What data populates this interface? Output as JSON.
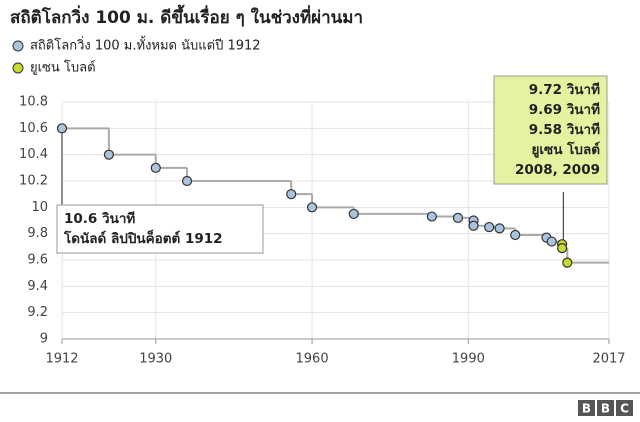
{
  "chart_data": {
    "type": "step-scatter",
    "title": "สถิติโลกวิ่ง 100 ม. ดีขึ้นเรื่อย ๆ ในช่วงที่ผ่านมา",
    "series": [
      {
        "name": "สถิติโลกวิ่ง 100 ม.ทั้งหมด นับแต่ปี 1912",
        "color": "#a9c4dc",
        "x": [
          1912,
          1921,
          1930,
          1936,
          1956,
          1960,
          1968,
          1983,
          1988,
          1991,
          1991,
          1994,
          1996,
          1999,
          2005,
          2006
        ],
        "values": [
          10.6,
          10.4,
          10.3,
          10.2,
          10.1,
          10.0,
          9.95,
          9.93,
          9.92,
          9.9,
          9.86,
          9.85,
          9.84,
          9.79,
          9.77,
          9.74
        ]
      },
      {
        "name": "ยูเซน โบลต์",
        "color": "#c8d930",
        "x": [
          2008,
          2008,
          2009
        ],
        "values": [
          9.72,
          9.69,
          9.58
        ]
      }
    ],
    "xlim": [
      1912,
      2017
    ],
    "xticks": [
      1912,
      1930,
      1960,
      1990,
      2017
    ],
    "ylim": [
      9,
      10.8
    ],
    "yticks": [
      9,
      9.2,
      9.4,
      9.6,
      9.8,
      10,
      10.2,
      10.4,
      10.6,
      10.8
    ],
    "grid": true,
    "annotations": [
      {
        "lines": [
          "10.6 วินาที",
          "โดนัลด์ ลิปปินค็อตต์ 1912"
        ],
        "color": "#ffffff"
      },
      {
        "lines": [
          "9.72 วินาที",
          "9.69 วินาที",
          "9.58 วินาที",
          "ยูเซน โบลต์",
          "2008, 2009"
        ],
        "color": "#e6f2a0"
      }
    ],
    "logo": [
      "B",
      "B",
      "C"
    ]
  }
}
